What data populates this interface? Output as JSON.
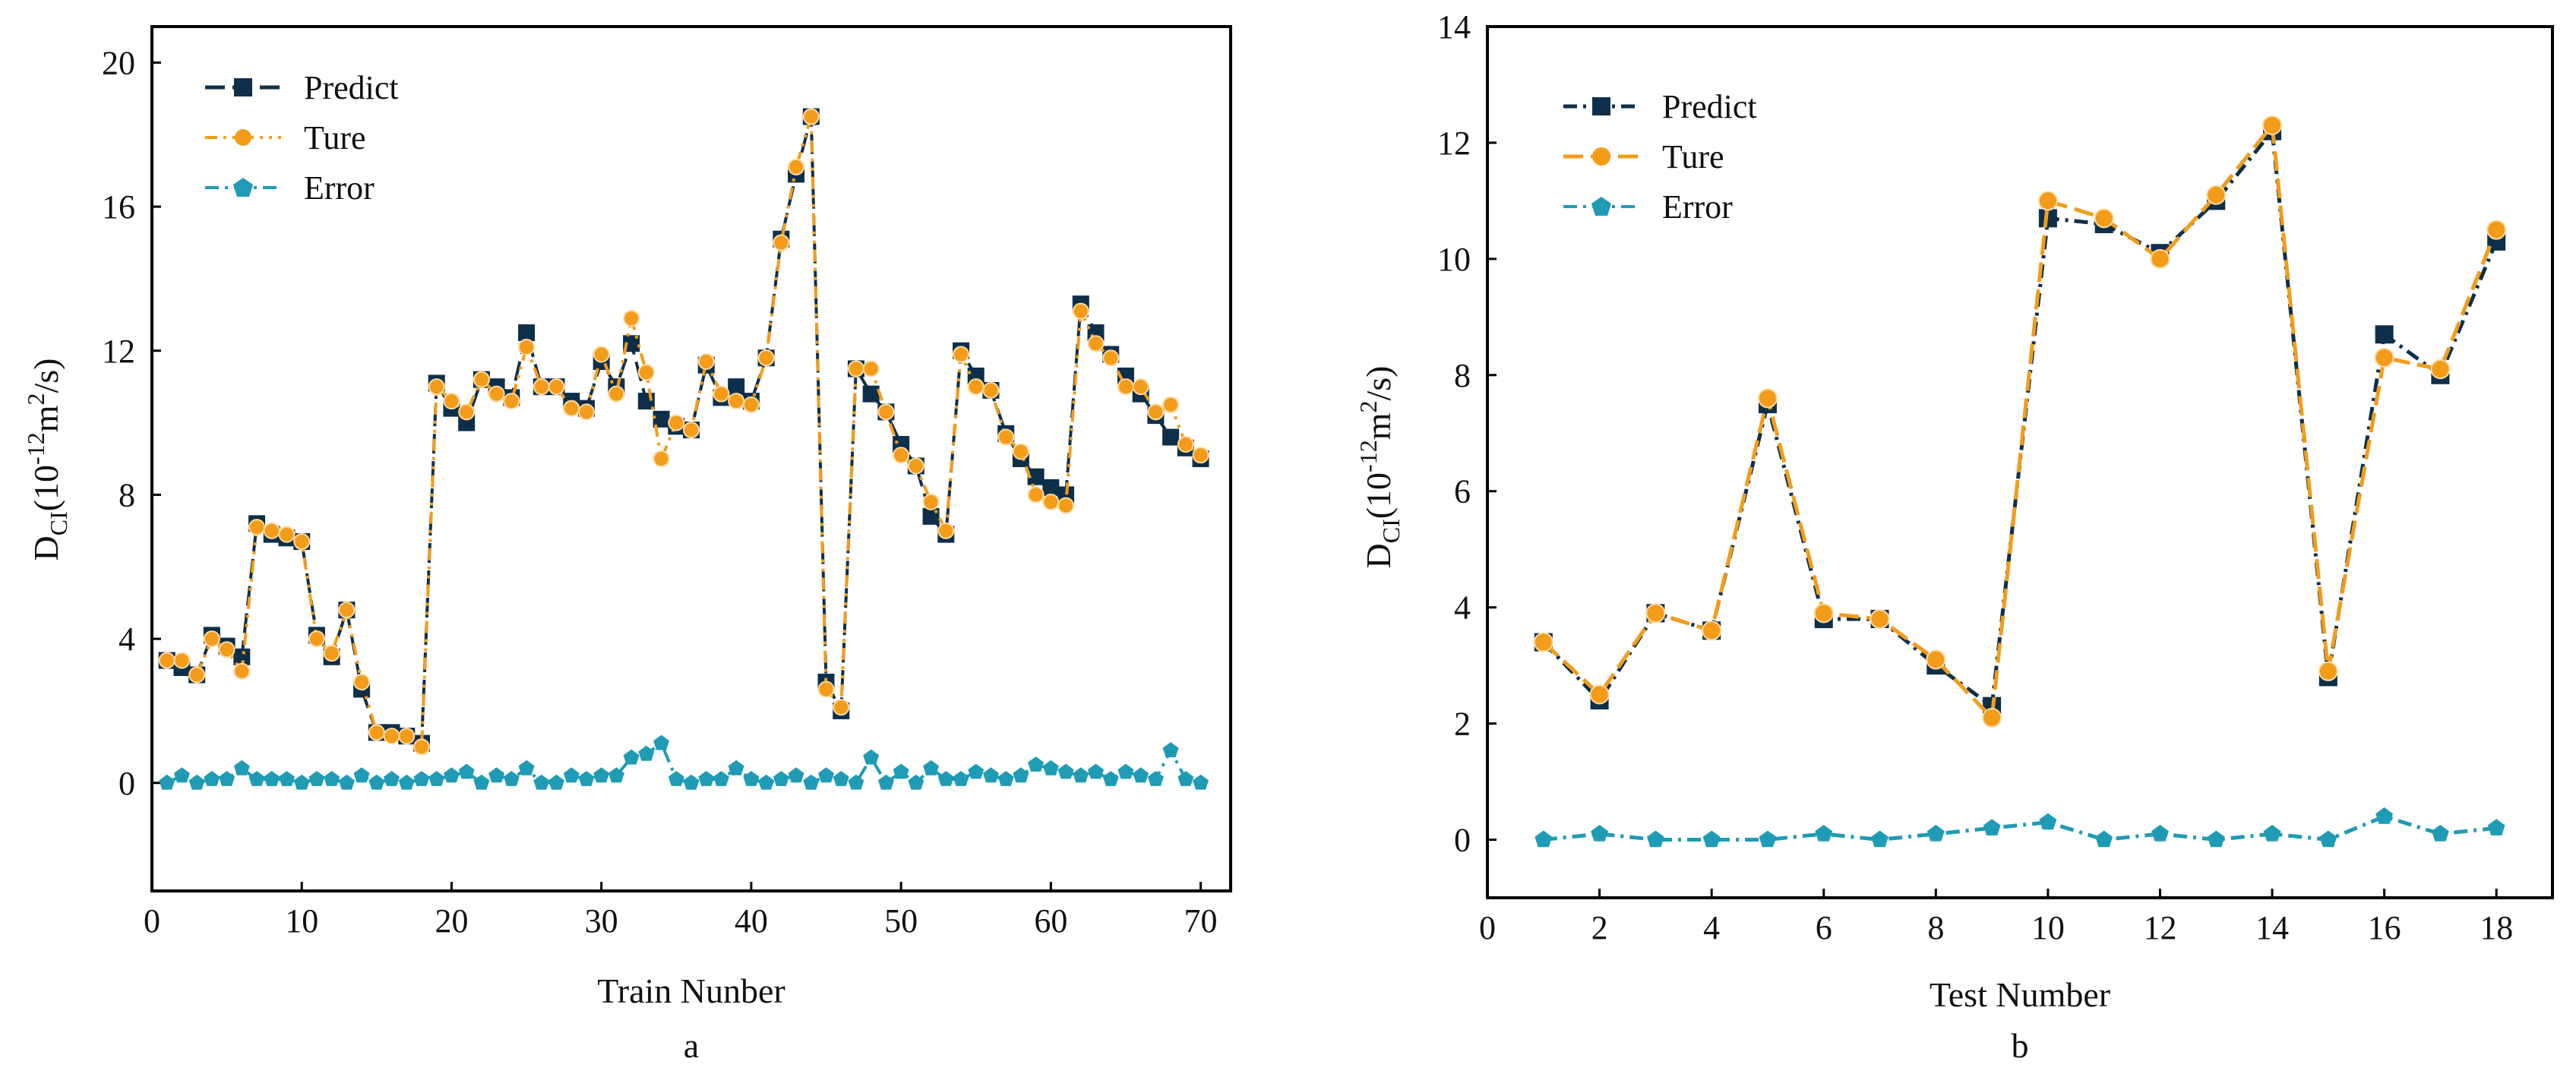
{
  "colors": {
    "predict": "#0d2f4a",
    "ture": "#f39c1a",
    "error": "#1f9bb5",
    "axis": "#000000"
  },
  "chart_data": [
    {
      "type": "line",
      "panel_label": "a",
      "xlabel": "Train Nunber",
      "ylabel_main": "D",
      "ylabel_sub": "CI",
      "ylabel_rest_a": "(10",
      "ylabel_sup1": "-12",
      "ylabel_rest_b": "m",
      "ylabel_sup2": "2",
      "ylabel_rest_c": "/s)",
      "xlim": [
        0,
        72
      ],
      "ylim": [
        -3,
        21
      ],
      "xticks": [
        0,
        10,
        20,
        30,
        40,
        50,
        60,
        70
      ],
      "yticks": [
        0,
        4,
        8,
        12,
        16,
        20
      ],
      "legend": {
        "position": "top-left",
        "entries": [
          "Predict",
          "Ture",
          "Error"
        ]
      },
      "grid": false,
      "x": [
        1,
        2,
        3,
        4,
        5,
        6,
        7,
        8,
        9,
        10,
        11,
        12,
        13,
        14,
        15,
        16,
        17,
        18,
        19,
        20,
        21,
        22,
        23,
        24,
        25,
        26,
        27,
        28,
        29,
        30,
        31,
        32,
        33,
        34,
        35,
        36,
        37,
        38,
        39,
        40,
        41,
        42,
        43,
        44,
        45,
        46,
        47,
        48,
        49,
        50,
        51,
        52,
        53,
        54,
        55,
        56,
        57,
        58,
        59,
        60,
        61,
        62,
        63,
        64,
        65,
        66,
        67,
        68,
        69,
        70
      ],
      "series": [
        {
          "name": "Predict",
          "marker": "square",
          "dash": "long",
          "values": [
            3.4,
            3.2,
            3.0,
            4.1,
            3.8,
            3.5,
            7.2,
            6.9,
            6.8,
            6.7,
            4.1,
            3.5,
            4.8,
            2.6,
            1.4,
            1.4,
            1.3,
            1.1,
            11.1,
            10.4,
            10.0,
            11.2,
            11.0,
            10.7,
            12.5,
            11.0,
            11.0,
            10.6,
            10.4,
            11.7,
            11.0,
            12.2,
            10.6,
            10.1,
            9.9,
            9.8,
            11.6,
            10.7,
            11.0,
            10.6,
            11.8,
            15.1,
            16.9,
            18.5,
            2.8,
            2.0,
            11.5,
            10.8,
            10.3,
            9.4,
            8.8,
            7.4,
            6.9,
            12.0,
            11.3,
            10.9,
            9.7,
            9.0,
            8.5,
            8.2,
            8.0,
            13.3,
            12.5,
            11.9,
            11.3,
            10.8,
            10.2,
            9.6,
            9.3,
            9.0
          ]
        },
        {
          "name": "Ture",
          "marker": "circle",
          "dash": "dashdotdot",
          "values": [
            3.4,
            3.4,
            3.0,
            4.0,
            3.7,
            3.1,
            7.1,
            7.0,
            6.9,
            6.7,
            4.0,
            3.6,
            4.8,
            2.8,
            1.4,
            1.3,
            1.3,
            1.0,
            11.0,
            10.6,
            10.3,
            11.2,
            10.8,
            10.6,
            12.1,
            11.0,
            11.0,
            10.4,
            10.3,
            11.9,
            10.8,
            12.9,
            11.4,
            9.0,
            10.0,
            9.8,
            11.7,
            10.8,
            10.6,
            10.5,
            11.8,
            15.0,
            17.1,
            18.5,
            2.6,
            2.1,
            11.5,
            11.5,
            10.3,
            9.1,
            8.8,
            7.8,
            7.0,
            11.9,
            11.0,
            10.9,
            9.6,
            9.2,
            8.0,
            7.8,
            7.7,
            13.1,
            12.2,
            11.8,
            11.0,
            11.0,
            10.3,
            10.5,
            9.4,
            9.1
          ]
        },
        {
          "name": "Error",
          "marker": "pentagon",
          "dash": "dashdot",
          "values": [
            0.0,
            0.2,
            0.0,
            0.1,
            0.1,
            0.4,
            0.1,
            0.1,
            0.1,
            0.0,
            0.1,
            0.1,
            0.0,
            0.2,
            0.0,
            0.1,
            0.0,
            0.1,
            0.1,
            0.2,
            0.3,
            0.0,
            0.2,
            0.1,
            0.4,
            0.0,
            0.0,
            0.2,
            0.1,
            0.2,
            0.2,
            0.7,
            0.8,
            1.1,
            0.1,
            0.0,
            0.1,
            0.1,
            0.4,
            0.1,
            0.0,
            0.1,
            0.2,
            0.0,
            0.2,
            0.1,
            0.0,
            0.7,
            0.0,
            0.3,
            0.0,
            0.4,
            0.1,
            0.1,
            0.3,
            0.2,
            0.1,
            0.2,
            0.5,
            0.4,
            0.3,
            0.2,
            0.3,
            0.1,
            0.3,
            0.2,
            0.1,
            0.9,
            0.1,
            0.0
          ]
        }
      ]
    },
    {
      "type": "line",
      "panel_label": "b",
      "xlabel": "Test Number",
      "ylabel_main": "D",
      "ylabel_sub": "CI",
      "ylabel_rest_a": "(10",
      "ylabel_sup1": "-12",
      "ylabel_rest_b": "m",
      "ylabel_sup2": "2",
      "ylabel_rest_c": "/s)",
      "xlim": [
        0,
        19
      ],
      "ylim": [
        -1,
        14
      ],
      "xticks": [
        0,
        2,
        4,
        6,
        8,
        10,
        12,
        14,
        16,
        18
      ],
      "yticks": [
        0,
        2,
        4,
        6,
        8,
        10,
        12,
        14
      ],
      "legend": {
        "position": "top-left",
        "entries": [
          "Predict",
          "Ture",
          "Error"
        ]
      },
      "grid": false,
      "x": [
        1,
        2,
        3,
        4,
        5,
        6,
        7,
        8,
        9,
        10,
        11,
        12,
        13,
        14,
        15,
        16,
        17,
        18
      ],
      "series": [
        {
          "name": "Predict",
          "marker": "square",
          "dash": "dashdot",
          "values": [
            3.4,
            2.4,
            3.9,
            3.6,
            7.5,
            3.8,
            3.8,
            3.0,
            2.3,
            10.7,
            10.6,
            10.1,
            11.0,
            12.2,
            2.8,
            8.7,
            8.0,
            10.3
          ]
        },
        {
          "name": "Ture",
          "marker": "circle",
          "dash": "long",
          "values": [
            3.4,
            2.5,
            3.9,
            3.6,
            7.6,
            3.9,
            3.8,
            3.1,
            2.1,
            11.0,
            10.7,
            10.0,
            11.1,
            12.3,
            2.9,
            8.3,
            8.1,
            10.5
          ]
        },
        {
          "name": "Error",
          "marker": "pentagon",
          "dash": "dashdot",
          "values": [
            0.0,
            0.1,
            0.0,
            0.0,
            0.0,
            0.1,
            0.0,
            0.1,
            0.2,
            0.3,
            0.0,
            0.1,
            0.0,
            0.1,
            0.0,
            0.4,
            0.1,
            0.2
          ]
        }
      ]
    }
  ]
}
